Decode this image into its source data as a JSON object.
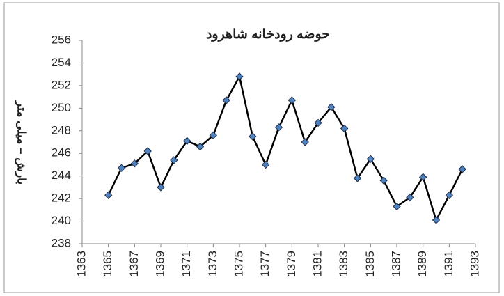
{
  "chart_data": {
    "type": "line",
    "title": "حوضه رودخانه شاهرود",
    "y_label": "بارش – میلی متر",
    "x": [
      1365,
      1366,
      1367,
      1368,
      1369,
      1370,
      1371,
      1372,
      1373,
      1374,
      1375,
      1376,
      1377,
      1378,
      1379,
      1380,
      1381,
      1382,
      1383,
      1384,
      1385,
      1386,
      1387,
      1388,
      1389,
      1390,
      1391,
      1392
    ],
    "values": [
      242.3,
      244.7,
      245.1,
      246.2,
      243.0,
      245.4,
      247.1,
      246.6,
      247.6,
      250.7,
      252.8,
      247.5,
      245.0,
      248.3,
      250.7,
      247.0,
      248.7,
      250.1,
      248.2,
      243.8,
      245.5,
      243.6,
      241.3,
      242.1,
      243.9,
      240.1,
      242.3,
      244.6
    ],
    "color": "#000000",
    "marker_color": "#4f81bd",
    "xlim": [
      1363,
      1393
    ],
    "xticks": [
      1363,
      1365,
      1367,
      1369,
      1371,
      1373,
      1375,
      1377,
      1379,
      1381,
      1383,
      1385,
      1387,
      1389,
      1391,
      1393
    ],
    "ylim": [
      238,
      256
    ],
    "yticks": [
      238,
      240,
      242,
      244,
      246,
      248,
      250,
      252,
      254,
      256
    ],
    "grid": false
  }
}
